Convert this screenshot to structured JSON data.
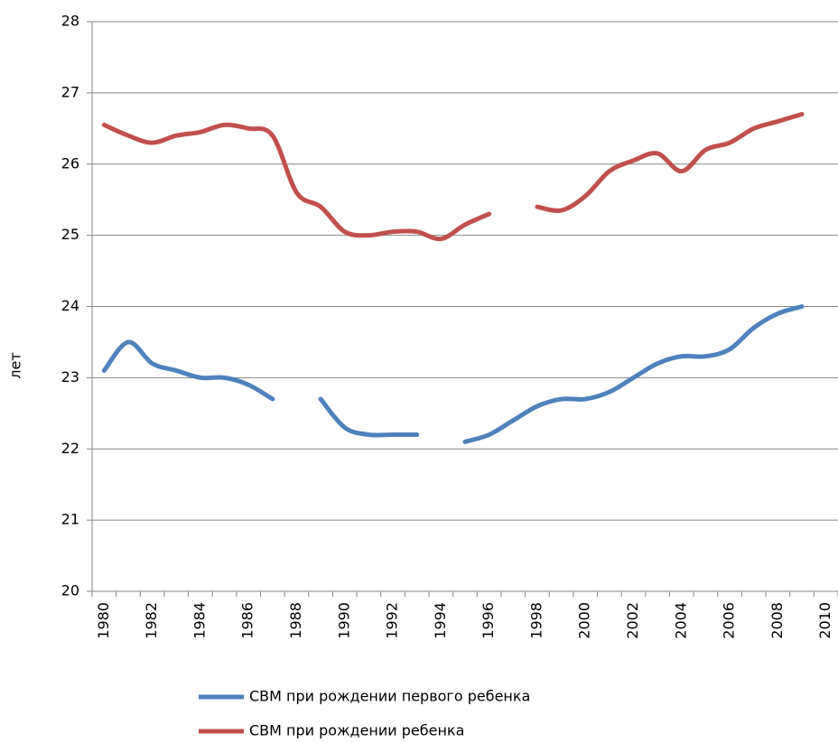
{
  "chart_data": {
    "type": "line",
    "y_label": "лет",
    "categories": [
      "1980",
      null,
      "1982",
      null,
      "1984",
      null,
      "1986",
      null,
      "1988",
      null,
      "1990",
      null,
      "1992",
      null,
      "1994",
      null,
      "1996",
      null,
      "1998",
      null,
      "2000",
      null,
      "2002",
      null,
      "2004",
      null,
      "2006",
      null,
      "2008",
      null,
      "2010"
    ],
    "series": [
      {
        "name": "СВМ при рождении первого ребенка",
        "color": "#4f81bd",
        "values": [
          23.1,
          23.5,
          23.2,
          23.1,
          23.0,
          23.0,
          22.9,
          22.7,
          null,
          22.7,
          22.3,
          22.2,
          22.2,
          22.2,
          null,
          22.1,
          22.2,
          22.4,
          22.6,
          22.7,
          22.7,
          22.8,
          23.0,
          23.2,
          23.3,
          23.3,
          23.4,
          23.7,
          23.9,
          24.0,
          null
        ]
      },
      {
        "name": "СВМ при рождении ребенка",
        "color": "#c0504d",
        "values": [
          26.55,
          26.4,
          26.3,
          26.4,
          26.45,
          26.55,
          26.5,
          26.4,
          25.6,
          25.4,
          25.05,
          25.0,
          25.05,
          25.05,
          24.95,
          25.15,
          25.3,
          null,
          25.4,
          25.35,
          25.55,
          25.9,
          26.05,
          26.15,
          25.9,
          26.2,
          26.3,
          26.5,
          26.6,
          26.7,
          null
        ]
      }
    ],
    "ylim": [
      20,
      28
    ],
    "yticks": [
      20,
      21,
      22,
      23,
      24,
      25,
      26,
      27,
      28
    ],
    "grid": true,
    "legend": "bottom"
  }
}
